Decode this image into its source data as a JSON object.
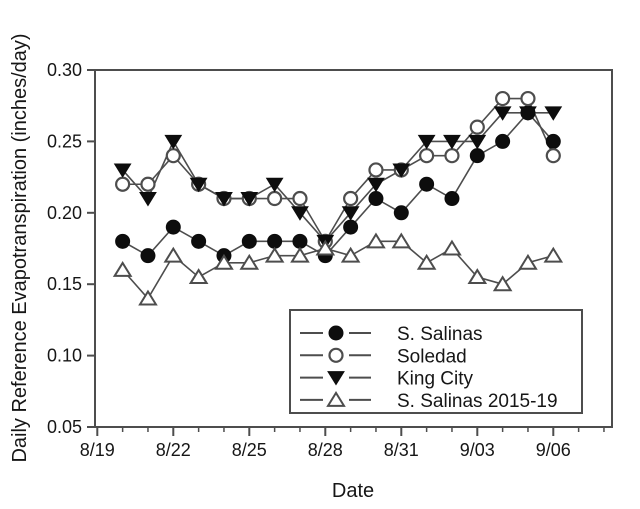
{
  "chart_data": {
    "type": "line",
    "title": "",
    "ylabel": "Daily Reference Evapotranspiration (inches/day)",
    "xlabel": "Date",
    "ylim": [
      0.05,
      0.3
    ],
    "grid": false,
    "legend_position": "inside-bottom-right",
    "colors": {
      "marker_fill": "#0d0d0d",
      "line": "#4d4d4d",
      "open_marker_fill": "#ffffff",
      "background": "#ffffff"
    },
    "y_ticks": {
      "values": [
        0.05,
        0.1,
        0.15,
        0.2,
        0.25,
        0.3
      ],
      "labels": [
        "0.05",
        "0.10",
        "0.15",
        "0.20",
        "0.25",
        "0.30"
      ]
    },
    "x_ticks": {
      "major_days": [
        0,
        3,
        6,
        9,
        12,
        15,
        18
      ],
      "labels": [
        "8/19",
        "8/22",
        "8/25",
        "8/28",
        "8/31",
        "9/03",
        "9/06"
      ],
      "minor_tick_every_day": true,
      "last_day_shown": 20
    },
    "point_dates": [
      "8/20",
      "8/21",
      "8/22",
      "8/23",
      "8/24",
      "8/25",
      "8/26",
      "8/27",
      "8/28",
      "8/29",
      "8/30",
      "8/31",
      "9/01",
      "9/02",
      "9/03",
      "9/04",
      "9/05",
      "9/06"
    ],
    "point_days": [
      1,
      2,
      3,
      4,
      5,
      6,
      7,
      8,
      9,
      10,
      11,
      12,
      13,
      14,
      15,
      16,
      17,
      18
    ],
    "series": [
      {
        "name": "S. Salinas",
        "marker": "filled-circle",
        "values": [
          0.18,
          0.17,
          0.19,
          0.18,
          0.17,
          0.18,
          0.18,
          0.18,
          0.17,
          0.19,
          0.21,
          0.2,
          0.22,
          0.21,
          0.24,
          0.25,
          0.27,
          0.25
        ]
      },
      {
        "name": "Soledad",
        "marker": "open-circle",
        "values": [
          0.22,
          0.22,
          0.24,
          0.22,
          0.21,
          0.21,
          0.21,
          0.21,
          0.18,
          0.21,
          0.23,
          0.23,
          0.24,
          0.24,
          0.26,
          0.28,
          0.28,
          0.24
        ]
      },
      {
        "name": " King City",
        "marker": "filled-triangle-down",
        "values": [
          0.23,
          0.21,
          0.25,
          0.22,
          0.21,
          0.21,
          0.22,
          0.2,
          0.18,
          0.2,
          0.22,
          0.23,
          0.25,
          0.25,
          0.25,
          0.27,
          0.27,
          0.27
        ]
      },
      {
        "name": "S. Salinas 2015-19",
        "marker": "open-triangle-up",
        "values": [
          0.16,
          0.14,
          0.17,
          0.155,
          0.165,
          0.165,
          0.17,
          0.17,
          0.175,
          0.17,
          0.18,
          0.18,
          0.165,
          0.175,
          0.155,
          0.15,
          0.165,
          0.17
        ]
      }
    ]
  }
}
